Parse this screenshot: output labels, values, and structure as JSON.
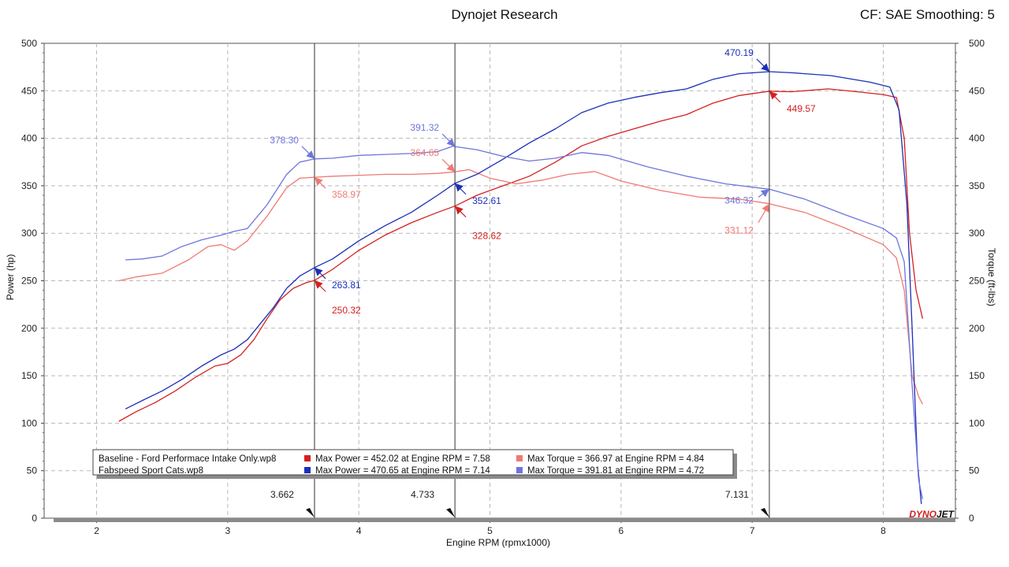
{
  "header": {
    "title": "Dynojet Research",
    "correction": "CF: SAE Smoothing: 5"
  },
  "brand": "DYNOJET",
  "colors": {
    "baseline_power": "#d42020",
    "baseline_torque": "#ee7a72",
    "fabspeed_power": "#1c2fb8",
    "fabspeed_torque": "#6d75db",
    "cursor": "#333333",
    "grid": "#b8b8b8"
  },
  "chart_data": {
    "type": "line",
    "title": "Dynojet Research",
    "xlabel": "Engine RPM (rpmx1000)",
    "ylabel_left": "Power (hp)",
    "ylabel_right": "Torque (ft-lbs)",
    "xlim": [
      1.6,
      8.55
    ],
    "ylim": [
      0,
      500
    ],
    "y2lim": [
      0,
      500
    ],
    "xticks": [
      "2",
      "3",
      "4",
      "5",
      "6",
      "7",
      "8"
    ],
    "yticks": [
      "0",
      "50",
      "100",
      "150",
      "200",
      "250",
      "300",
      "350",
      "400",
      "450",
      "500"
    ],
    "grid": true,
    "cursors": [
      {
        "label": "3.662",
        "rpm": 3.662
      },
      {
        "label": "4.733",
        "rpm": 4.733
      },
      {
        "label": "7.131",
        "rpm": 7.131
      }
    ],
    "series": [
      {
        "key": "baseline_power",
        "axis": "left",
        "x": [
          2.17,
          2.3,
          2.45,
          2.6,
          2.75,
          2.9,
          3.0,
          3.1,
          3.2,
          3.3,
          3.4,
          3.5,
          3.6,
          3.662,
          3.8,
          4.0,
          4.2,
          4.4,
          4.6,
          4.733,
          4.9,
          5.1,
          5.3,
          5.5,
          5.7,
          5.9,
          6.1,
          6.3,
          6.5,
          6.7,
          6.9,
          7.131,
          7.3,
          7.58,
          7.8,
          8.0,
          8.1,
          8.16,
          8.2,
          8.25,
          8.3
        ],
        "y": [
          102,
          112,
          122,
          134,
          148,
          160,
          163,
          172,
          188,
          210,
          230,
          242,
          248,
          250.32,
          262,
          282,
          298,
          311,
          322,
          328.62,
          340,
          350,
          360,
          375,
          392,
          402,
          410,
          418,
          425,
          437,
          445,
          449.57,
          449,
          452.02,
          449,
          446,
          443,
          400,
          300,
          240,
          210
        ]
      },
      {
        "key": "baseline_torque",
        "axis": "right",
        "x": [
          2.17,
          2.3,
          2.5,
          2.7,
          2.85,
          2.95,
          3.05,
          3.15,
          3.3,
          3.45,
          3.55,
          3.662,
          3.8,
          4.0,
          4.2,
          4.4,
          4.6,
          4.733,
          4.84,
          5.0,
          5.2,
          5.4,
          5.6,
          5.8,
          6.0,
          6.3,
          6.6,
          6.9,
          7.131,
          7.4,
          7.7,
          8.0,
          8.1,
          8.16,
          8.22,
          8.27,
          8.3
        ],
        "y": [
          250,
          254,
          258,
          272,
          286,
          288,
          282,
          292,
          318,
          348,
          358,
          358.97,
          360,
          361,
          362,
          362,
          363,
          364.65,
          366.97,
          358,
          352,
          356,
          362,
          365,
          355,
          345,
          338,
          336,
          331.12,
          322,
          306,
          288,
          274,
          240,
          150,
          128,
          120
        ]
      },
      {
        "key": "fabspeed_power",
        "axis": "left",
        "x": [
          2.22,
          2.35,
          2.5,
          2.65,
          2.8,
          2.95,
          3.05,
          3.15,
          3.25,
          3.35,
          3.45,
          3.55,
          3.662,
          3.8,
          4.0,
          4.2,
          4.4,
          4.6,
          4.733,
          4.9,
          5.1,
          5.3,
          5.5,
          5.7,
          5.9,
          6.1,
          6.3,
          6.5,
          6.7,
          6.9,
          7.131,
          7.3,
          7.6,
          7.9,
          8.05,
          8.12,
          8.18,
          8.22,
          8.26,
          8.29
        ],
        "y": [
          115,
          124,
          134,
          146,
          160,
          172,
          178,
          188,
          205,
          222,
          242,
          255,
          263.81,
          273,
          292,
          308,
          322,
          340,
          352.61,
          362,
          378,
          395,
          410,
          427,
          437,
          443,
          448,
          452,
          462,
          468,
          470.19,
          469,
          466,
          459,
          454,
          430,
          330,
          200,
          60,
          15
        ]
      },
      {
        "key": "fabspeed_torque",
        "axis": "right",
        "x": [
          2.22,
          2.35,
          2.5,
          2.65,
          2.8,
          2.95,
          3.05,
          3.15,
          3.3,
          3.45,
          3.55,
          3.662,
          3.8,
          4.0,
          4.2,
          4.4,
          4.6,
          4.72,
          4.733,
          4.9,
          5.1,
          5.3,
          5.5,
          5.7,
          5.9,
          6.2,
          6.5,
          6.8,
          7.131,
          7.4,
          7.7,
          8.0,
          8.1,
          8.16,
          8.22,
          8.27,
          8.3
        ],
        "y": [
          272,
          273,
          276,
          286,
          293,
          298,
          302,
          305,
          330,
          362,
          375,
          378.3,
          379,
          382,
          383,
          384,
          386,
          391.81,
          391.32,
          388,
          381,
          376,
          379,
          385,
          382,
          370,
          360,
          352,
          346.32,
          336,
          320,
          305,
          295,
          270,
          140,
          40,
          20
        ]
      }
    ],
    "annotations": [
      {
        "label": "378.30",
        "key": "fabspeed_torque",
        "rpm": 3.662,
        "value": 378.3,
        "side": "upleft"
      },
      {
        "label": "358.97",
        "key": "baseline_torque",
        "rpm": 3.662,
        "value": 358.97,
        "side": "downright"
      },
      {
        "label": "263.81",
        "key": "fabspeed_power",
        "rpm": 3.662,
        "value": 263.81,
        "side": "downright"
      },
      {
        "label": "250.32",
        "key": "baseline_power",
        "rpm": 3.662,
        "value": 250.32,
        "side": "downright2"
      },
      {
        "label": "391.32",
        "key": "fabspeed_torque",
        "rpm": 4.733,
        "value": 391.32,
        "side": "upleft"
      },
      {
        "label": "364.65",
        "key": "baseline_torque",
        "rpm": 4.733,
        "value": 364.65,
        "side": "upleft"
      },
      {
        "label": "352.61",
        "key": "fabspeed_power",
        "rpm": 4.733,
        "value": 352.61,
        "side": "downright"
      },
      {
        "label": "328.62",
        "key": "baseline_power",
        "rpm": 4.733,
        "value": 328.62,
        "side": "downright2"
      },
      {
        "label": "470.19",
        "key": "fabspeed_power",
        "rpm": 7.131,
        "value": 470.19,
        "side": "upleft"
      },
      {
        "label": "449.57",
        "key": "baseline_power",
        "rpm": 7.131,
        "value": 449.57,
        "side": "downright"
      },
      {
        "label": "346.32",
        "key": "fabspeed_torque",
        "rpm": 7.131,
        "value": 346.32,
        "side": "downleft"
      },
      {
        "label": "331.12",
        "key": "baseline_torque",
        "rpm": 7.131,
        "value": 331.12,
        "side": "downleft2"
      }
    ]
  },
  "legend": {
    "rows": [
      {
        "file": "Baseline - Ford Performace Intake Only.wp8",
        "power_key": "baseline_power",
        "power_text": "Max Power = 452.02 at Engine RPM = 7.58",
        "torque_key": "baseline_torque",
        "torque_text": "Max Torque = 366.97 at Engine RPM = 4.84"
      },
      {
        "file": "Fabspeed Sport Cats.wp8",
        "power_key": "fabspeed_power",
        "power_text": "Max Power = 470.65 at Engine RPM = 7.14",
        "torque_key": "fabspeed_torque",
        "torque_text": "Max Torque = 391.81 at Engine RPM = 4.72"
      }
    ]
  }
}
